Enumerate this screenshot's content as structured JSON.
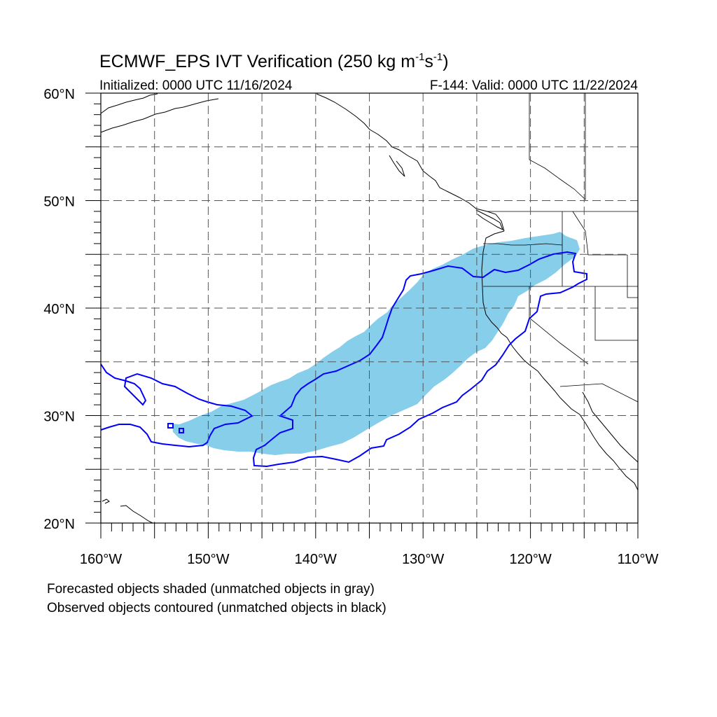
{
  "title": {
    "main": "ECMWF_EPS IVT Verification (250 kg m",
    "sup1": "-1",
    "mid": "s",
    "sup2": "-1",
    "end": ")"
  },
  "init_label": "Initialized: 0000 UTC 11/16/2024",
  "valid_label": "F-144: Valid: 0000 UTC 11/22/2024",
  "map": {
    "lon_range": [
      -160,
      -110
    ],
    "lat_range": [
      20,
      60
    ],
    "lat_labels": [
      "20°N",
      "30°N",
      "40°N",
      "50°N",
      "60°N"
    ],
    "lon_labels": [
      "160°W",
      "150°W",
      "140°W",
      "130°W",
      "120°W",
      "110°W"
    ],
    "grid_lines": "dashed",
    "forecast_color": "#87ceeb",
    "observed_color": "#0000ff",
    "coast_color": "#000000"
  },
  "notes": [
    "Forecasted objects shaded (unmatched objects in gray)",
    "Observed objects contoured (unmatched objects in black)"
  ]
}
